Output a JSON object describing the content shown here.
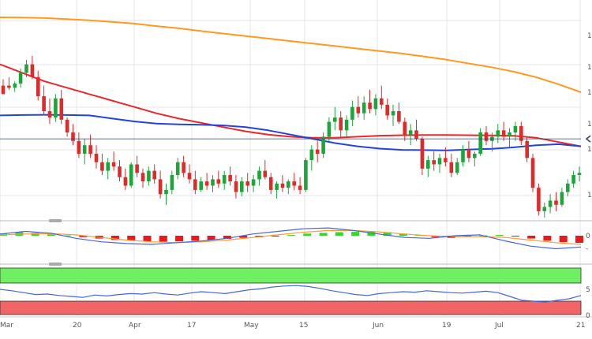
{
  "chart_data": {
    "type": "candlestick",
    "colors": {
      "up": "#1ca53a",
      "down": "#e02a2a",
      "sma_slow": "#ff9920",
      "sma_mid": "#e8282a",
      "sma_fast": "#2244dd",
      "hist_up": "#36d62b",
      "hist_down": "#e81a1a",
      "macd": "#4466dd",
      "signal": "#ff9933",
      "rsi": "#4466dd",
      "zone_upper": "#6ff062",
      "zone_lower": "#f06565",
      "level": "#334466",
      "grid": "#e6e6e6"
    },
    "x_tick_labels": [
      "Mar",
      "20",
      "Apr",
      "17",
      "May",
      "15",
      "Jun",
      "19",
      "Jul",
      "21"
    ],
    "y_ticks_main_visible": [
      "1",
      "1",
      "1",
      "1",
      "1",
      "1"
    ],
    "macd_axis_labels": [
      "0",
      "-"
    ],
    "rsi_axis_labels": [
      "5",
      "0"
    ],
    "price_levels": {
      "ymin": 0,
      "ymax": 100,
      "reference_level": 37
    },
    "candles_ohlc": [
      [
        62,
        65,
        60,
        58
      ],
      [
        62,
        66,
        60,
        61
      ],
      [
        61,
        64,
        59,
        63
      ],
      [
        63,
        70,
        61,
        68
      ],
      [
        68,
        74,
        66,
        72
      ],
      [
        72,
        76,
        65,
        66
      ],
      [
        66,
        69,
        55,
        57
      ],
      [
        57,
        62,
        48,
        50
      ],
      [
        50,
        56,
        44,
        47
      ],
      [
        47,
        58,
        45,
        56
      ],
      [
        56,
        60,
        44,
        46
      ],
      [
        46,
        47,
        38,
        40
      ],
      [
        40,
        44,
        34,
        36
      ],
      [
        36,
        40,
        28,
        30
      ],
      [
        30,
        37,
        25,
        34
      ],
      [
        34,
        39,
        28,
        30
      ],
      [
        30,
        34,
        23,
        26
      ],
      [
        26,
        30,
        20,
        22
      ],
      [
        22,
        28,
        18,
        26
      ],
      [
        26,
        31,
        22,
        24
      ],
      [
        24,
        27,
        17,
        19
      ],
      [
        19,
        23,
        13,
        15
      ],
      [
        15,
        26,
        14,
        25
      ],
      [
        25,
        29,
        19,
        21
      ],
      [
        21,
        23,
        14,
        17
      ],
      [
        17,
        24,
        15,
        22
      ],
      [
        22,
        25,
        16,
        18
      ],
      [
        18,
        22,
        9,
        11
      ],
      [
        11,
        16,
        6,
        13
      ],
      [
        13,
        22,
        11,
        20
      ],
      [
        20,
        28,
        18,
        26
      ],
      [
        26,
        29,
        19,
        21
      ],
      [
        21,
        25,
        16,
        18
      ],
      [
        18,
        22,
        11,
        13
      ],
      [
        13,
        19,
        12,
        17
      ],
      [
        17,
        21,
        13,
        15
      ],
      [
        15,
        20,
        12,
        18
      ],
      [
        18,
        22,
        14,
        16
      ],
      [
        16,
        22,
        13,
        20
      ],
      [
        20,
        24,
        15,
        17
      ],
      [
        17,
        20,
        9,
        12
      ],
      [
        12,
        19,
        10,
        17
      ],
      [
        17,
        21,
        12,
        15
      ],
      [
        15,
        20,
        12,
        18
      ],
      [
        18,
        24,
        15,
        22
      ],
      [
        22,
        27,
        18,
        19
      ],
      [
        19,
        21,
        11,
        13
      ],
      [
        13,
        17,
        9,
        16
      ],
      [
        16,
        20,
        12,
        14
      ],
      [
        14,
        18,
        11,
        17
      ],
      [
        17,
        21,
        13,
        15
      ],
      [
        15,
        19,
        11,
        13
      ],
      [
        13,
        28,
        12,
        27
      ],
      [
        27,
        34,
        22,
        32
      ],
      [
        32,
        36,
        26,
        30
      ],
      [
        30,
        40,
        28,
        38
      ],
      [
        38,
        47,
        36,
        45
      ],
      [
        45,
        52,
        41,
        47
      ],
      [
        47,
        50,
        38,
        41
      ],
      [
        41,
        48,
        38,
        46
      ],
      [
        46,
        55,
        43,
        52
      ],
      [
        52,
        57,
        47,
        49
      ],
      [
        49,
        57,
        46,
        54
      ],
      [
        54,
        60,
        49,
        51
      ],
      [
        51,
        58,
        48,
        56
      ],
      [
        56,
        62,
        51,
        53
      ],
      [
        53,
        56,
        46,
        48
      ],
      [
        48,
        53,
        43,
        50
      ],
      [
        50,
        54,
        44,
        45
      ],
      [
        45,
        47,
        36,
        39
      ],
      [
        39,
        44,
        34,
        41
      ],
      [
        41,
        46,
        36,
        37
      ],
      [
        37,
        38,
        20,
        23
      ],
      [
        23,
        29,
        19,
        27
      ],
      [
        27,
        31,
        22,
        25
      ],
      [
        25,
        30,
        21,
        28
      ],
      [
        28,
        33,
        24,
        26
      ],
      [
        26,
        30,
        19,
        21
      ],
      [
        21,
        28,
        20,
        26
      ],
      [
        26,
        34,
        24,
        32
      ],
      [
        32,
        36,
        26,
        28
      ],
      [
        28,
        31,
        24,
        30
      ],
      [
        30,
        42,
        29,
        40
      ],
      [
        40,
        43,
        34,
        36
      ],
      [
        36,
        40,
        31,
        38
      ],
      [
        38,
        44,
        35,
        41
      ],
      [
        41,
        45,
        36,
        38
      ],
      [
        38,
        42,
        33,
        40
      ],
      [
        40,
        45,
        36,
        43
      ],
      [
        43,
        45,
        34,
        36
      ],
      [
        36,
        38,
        26,
        28
      ],
      [
        28,
        30,
        12,
        14
      ],
      [
        14,
        16,
        1,
        3
      ],
      [
        3,
        7,
        0,
        5
      ],
      [
        5,
        11,
        2,
        8
      ],
      [
        8,
        12,
        3,
        6
      ],
      [
        6,
        14,
        5,
        12
      ],
      [
        12,
        18,
        10,
        16
      ],
      [
        16,
        22,
        14,
        20
      ],
      [
        20,
        24,
        17,
        21
      ]
    ],
    "sma_slow": [
      100,
      99.9,
      99.7,
      99.3,
      98.8,
      98.2,
      97.5,
      96.5,
      95.6,
      94.5,
      93.5,
      92.5,
      91.5,
      90.5,
      89.5,
      88.5,
      87.5,
      86.5,
      85.5,
      84.3,
      83,
      81.5,
      80,
      78.2,
      76,
      73.2,
      70
    ],
    "sma_mid": [
      72,
      68,
      64,
      61,
      58,
      55,
      52,
      49,
      46.5,
      44.5,
      42.5,
      40.5,
      39,
      38,
      37.5,
      37.5,
      38,
      38.5,
      38.7,
      38.8,
      38.8,
      38.7,
      38.6,
      38.4,
      37.5,
      35.5,
      33.5
    ],
    "sma_fast": [
      48,
      48.2,
      48.3,
      48.2,
      48,
      46.6,
      45.2,
      44.2,
      43.8,
      43.6,
      43.3,
      42.5,
      41,
      39,
      37,
      35,
      33.5,
      32.4,
      31.8,
      31.7,
      31.6,
      32,
      32.3,
      33,
      34,
      34.5,
      33.5
    ],
    "macd_histogram": [
      0.3,
      0.5,
      0.4,
      0.2,
      0.05,
      -0.2,
      -0.4,
      -0.6,
      -0.7,
      -0.8,
      -0.85,
      -0.8,
      -0.7,
      -0.6,
      -0.45,
      -0.3,
      -0.2,
      -0.1,
      0.1,
      0.3,
      0.4,
      0.5,
      0.55,
      0.55,
      0.5,
      0.3,
      0.1,
      -0.2,
      -0.3,
      -0.15,
      0.05,
      0.1,
      -0.1,
      -0.4,
      -0.7,
      -0.9,
      -1.0
    ],
    "macd_line": [
      0.2,
      0.5,
      0.3,
      -0.3,
      -0.7,
      -0.9,
      -1.0,
      -0.8,
      -0.6,
      -0.3,
      0.2,
      0.5,
      0.8,
      0.9,
      0.6,
      0.2,
      -0.2,
      -0.3,
      0.0,
      0.1,
      -0.6,
      -1.2,
      -1.5,
      -1.3
    ],
    "signal_line": [
      0.1,
      0.2,
      0.25,
      0.1,
      -0.2,
      -0.5,
      -0.7,
      -0.8,
      -0.7,
      -0.5,
      -0.2,
      0.1,
      0.4,
      0.6,
      0.6,
      0.45,
      0.2,
      0.0,
      -0.1,
      -0.1,
      -0.2,
      -0.5,
      -0.8,
      -1.0
    ],
    "rsi_values": [
      55,
      52,
      48,
      44,
      45,
      42,
      40,
      38,
      43,
      41,
      44,
      46,
      45,
      48,
      45,
      43,
      47,
      50,
      48,
      46,
      50,
      54,
      56,
      60,
      62,
      63,
      61,
      57,
      52,
      48,
      44,
      42,
      46,
      48,
      50,
      49,
      52,
      50,
      48,
      47,
      49,
      51,
      48,
      40,
      32,
      30,
      28,
      32,
      35,
      42
    ]
  }
}
